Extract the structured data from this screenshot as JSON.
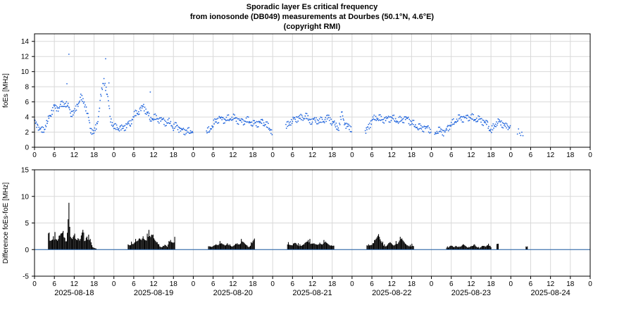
{
  "chart_data": [
    {
      "type": "scatter",
      "title": [
        "Sporadic layer Es critical frequency",
        "from ionosonde (DB049) measurements at Dourbes (50.1°N, 4.6°E)",
        "(copyright RMI)"
      ],
      "ylabel": "foEs [MHz]",
      "ylim": [
        0,
        15
      ],
      "yticks": [
        0,
        2,
        4,
        6,
        8,
        10,
        12,
        14
      ],
      "xlim_hours": [
        0,
        168
      ],
      "xticks": [
        "0",
        "6",
        "12",
        "18",
        "0",
        "6",
        "12",
        "18",
        "0",
        "6",
        "12",
        "18",
        "0",
        "6",
        "12",
        "18",
        "0",
        "6",
        "12",
        "18",
        "0",
        "6",
        "12",
        "18",
        "0",
        "6",
        "12",
        "18",
        "0"
      ],
      "grid": true,
      "color": "#2266dd",
      "segments": [
        {
          "x": [
            0,
            1,
            2,
            3,
            4,
            5,
            6,
            7,
            8,
            9,
            10,
            11,
            12,
            13,
            14,
            15,
            16,
            17,
            18,
            19,
            20,
            21,
            22,
            23,
            24,
            25,
            26,
            27,
            28,
            29,
            30,
            31,
            32,
            33,
            34,
            35,
            36,
            37,
            38,
            39,
            40,
            41,
            42,
            43,
            44,
            45,
            46,
            47,
            48
          ],
          "y": [
            3.4,
            2.8,
            2.1,
            2.5,
            3.5,
            4.6,
            5.3,
            5.1,
            5.5,
            5.8,
            5.6,
            4.6,
            4.5,
            5.6,
            6.5,
            6.0,
            4.5,
            2.4,
            1.9,
            3.1,
            6.5,
            9.0,
            7.0,
            3.8,
            2.6,
            2.6,
            2.4,
            2.6,
            3.0,
            3.2,
            4.2,
            4.5,
            4.9,
            5.4,
            4.6,
            3.8,
            3.9,
            3.8,
            3.6,
            3.5,
            3.2,
            3.4,
            2.6,
            2.9,
            2.3,
            2.1,
            2.2,
            2.0,
            2.3
          ],
          "peaks": [
            [
              10.4,
              12.3
            ],
            [
              21.5,
              11.7
            ],
            [
              22.5,
              8.5
            ],
            [
              9.8,
              8.4
            ],
            [
              35,
              7.3
            ]
          ]
        },
        {
          "x": [
            52,
            53,
            54,
            55,
            56,
            57,
            58,
            59,
            60,
            61,
            62,
            63,
            64,
            65,
            66,
            67,
            68,
            69,
            70,
            71,
            72
          ],
          "y": [
            1.9,
            2.4,
            3.0,
            3.6,
            3.8,
            3.6,
            3.7,
            3.8,
            4.0,
            3.7,
            3.5,
            3.3,
            3.6,
            3.4,
            3.2,
            3.1,
            3.3,
            3.2,
            3.1,
            2.4,
            2.1
          ]
        },
        {
          "x": [
            76,
            77,
            78,
            79,
            80,
            81,
            82,
            83,
            84,
            85,
            86,
            87,
            88,
            89,
            90,
            91,
            92,
            93,
            94,
            95,
            96
          ],
          "y": [
            2.6,
            3.2,
            3.6,
            3.8,
            3.9,
            3.8,
            4.1,
            3.6,
            3.5,
            3.7,
            3.4,
            3.5,
            3.6,
            4.0,
            3.3,
            3.0,
            2.5,
            4.5,
            2.8,
            2.7,
            2.5
          ]
        },
        {
          "x": [
            100,
            101,
            102,
            103,
            104,
            105,
            106,
            107,
            108,
            109,
            110,
            111,
            112,
            113,
            114,
            115,
            116,
            117,
            118,
            119,
            120
          ],
          "y": [
            1.8,
            2.8,
            3.5,
            4.0,
            3.8,
            3.7,
            3.6,
            3.8,
            3.9,
            3.7,
            3.5,
            3.6,
            3.8,
            3.6,
            3.3,
            2.9,
            2.7,
            2.5,
            2.6,
            2.4,
            2.3
          ]
        },
        {
          "x": [
            121,
            122,
            123,
            124,
            125,
            126,
            127,
            128,
            129,
            130,
            131,
            132,
            133,
            134,
            135,
            136,
            137,
            138,
            139,
            140,
            141,
            142,
            143,
            144
          ],
          "y": [
            2.0,
            2.1,
            2.3,
            1.8,
            2.6,
            3.0,
            3.4,
            3.8,
            3.9,
            3.8,
            3.9,
            4.0,
            3.7,
            3.8,
            3.6,
            3.3,
            3.0,
            2.1,
            2.8,
            3.5,
            3.2,
            3.0,
            2.5,
            3.0
          ]
        },
        {
          "x": [
            146,
            148
          ],
          "y": [
            1.9,
            1.8
          ]
        }
      ]
    },
    {
      "type": "bar",
      "ylabel": "Difference foEs-foE [MHz]",
      "ylim": [
        -5,
        15
      ],
      "yticks": [
        -5,
        0,
        5,
        10,
        15
      ],
      "xlim_hours": [
        0,
        168
      ],
      "xticks": [
        "0",
        "6",
        "12",
        "18",
        "0",
        "6",
        "12",
        "18",
        "0",
        "6",
        "12",
        "18",
        "0",
        "6",
        "12",
        "18",
        "0",
        "6",
        "12",
        "18",
        "0",
        "6",
        "12",
        "18",
        "0",
        "6",
        "12",
        "18",
        "0"
      ],
      "date_labels": [
        "2025-08-18",
        "2025-08-19",
        "2025-08-20",
        "2025-08-21",
        "2025-08-22",
        "2025-08-23",
        "2025-08-24"
      ],
      "grid": true,
      "color": "#000000",
      "zero_line_color": "#1f5fa8",
      "segments": [
        {
          "start": 4.2,
          "end": 18.6,
          "values": [
            3.2,
            1.5,
            2.0,
            2.5,
            3.3,
            2.0,
            2.6,
            3.0,
            3.5,
            2.2,
            2.8,
            8.8,
            2.4,
            2.0,
            3.0,
            2.6,
            3.5,
            2.0,
            2.8,
            3.9,
            1.6,
            3.6,
            2.8,
            2.0,
            0.5,
            0.3,
            0.2
          ]
        },
        {
          "start": 28.3,
          "end": 42.4,
          "values": [
            1.0,
            0.8,
            1.5,
            1.9,
            2.0,
            1.6,
            2.2,
            1.8,
            2.5,
            2.4,
            3.0,
            3.7,
            2.6,
            2.8,
            2.0,
            1.6,
            1.4,
            1.0,
            0.6,
            0.7,
            0.9,
            0.5,
            1.6,
            1.8,
            2.1,
            2.4
          ]
        },
        {
          "start": 52.6,
          "end": 66.5,
          "values": [
            0.9,
            0.6,
            0.5,
            0.8,
            1.0,
            1.4,
            1.6,
            1.2,
            1.0,
            0.8,
            1.2,
            1.5,
            1.0,
            0.6,
            0.8,
            1.1,
            1.2,
            1.7,
            2.0,
            1.5,
            1.0,
            0.8,
            0.5,
            1.4,
            1.9,
            2.2
          ]
        },
        {
          "start": 76.5,
          "end": 90.5,
          "values": [
            1.4,
            1.0,
            0.8,
            1.2,
            1.5,
            1.2,
            1.0,
            0.8,
            1.0,
            1.4,
            1.8,
            2.0,
            1.6,
            1.2,
            1.0,
            0.9,
            1.3,
            1.6,
            1.8,
            1.5,
            1.1,
            0.8,
            0.8,
            1.2
          ]
        },
        {
          "start": 100.5,
          "end": 114.6,
          "values": [
            0.8,
            1.0,
            1.5,
            1.2,
            1.8,
            2.2,
            2.9,
            2.0,
            1.5,
            1.0,
            0.8,
            1.2,
            1.4,
            1.0,
            0.8,
            1.6,
            1.9,
            2.4,
            2.1,
            1.5,
            1.0,
            0.8,
            0.9,
            1.1,
            0.8
          ]
        },
        {
          "start": 124.6,
          "end": 138.0,
          "values": [
            0.6,
            0.5,
            0.8,
            0.7,
            0.5,
            0.9,
            0.8,
            0.6,
            0.7,
            1.0,
            0.8,
            0.6,
            0.5,
            0.8,
            0.7,
            1.0,
            0.6,
            0.5,
            0.4,
            0.8,
            0.7,
            0.5,
            0.9,
            1.1,
            0.7
          ]
        },
        {
          "start": 139.8,
          "end": 140.2,
          "values": [
            1.1
          ]
        },
        {
          "start": 148.6,
          "end": 149.0,
          "values": [
            0.6
          ]
        }
      ]
    }
  ]
}
